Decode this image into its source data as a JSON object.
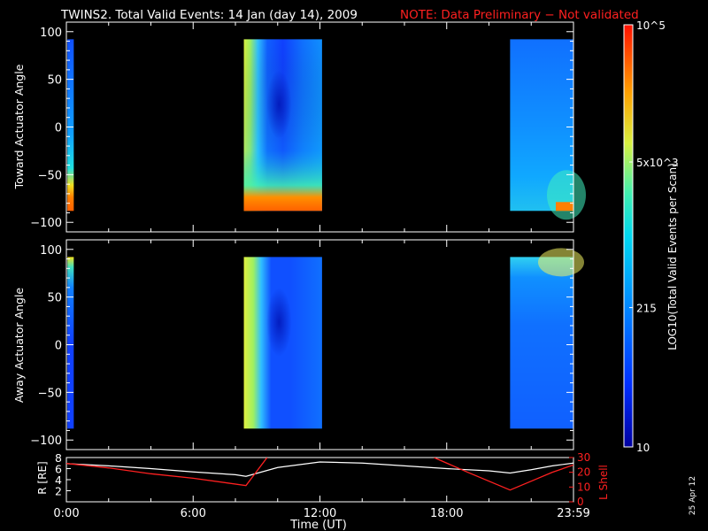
{
  "header": {
    "title": "TWINS2. Total Valid Events: 14 Jan (day  14), 2009",
    "note": "NOTE: Data Preliminary − Not validated"
  },
  "footer": {
    "date_stamp": "25 Apr 12"
  },
  "colors": {
    "background": "#000000",
    "axes": "#ffffff",
    "note": "#ff2020",
    "l_shell_line": "#ff2020",
    "r_line": "#ffffff"
  },
  "chart_data": [
    {
      "type": "heatmap",
      "name": "toward-panel",
      "ylabel": "Toward Actuator Angle",
      "ylim": [
        -110,
        110
      ],
      "yticks": [
        100,
        50,
        0,
        -50,
        -100
      ],
      "xlim": [
        0,
        24
      ],
      "data_blocks": [
        {
          "x_start": 0.05,
          "x_end": 0.35,
          "y_start": -88,
          "y_end": 92
        },
        {
          "x_start": 8.4,
          "x_end": 12.1,
          "y_start": -88,
          "y_end": 92
        },
        {
          "x_start": 21.0,
          "x_end": 24.0,
          "y_start": -88,
          "y_end": 92
        }
      ]
    },
    {
      "type": "heatmap",
      "name": "away-panel",
      "ylabel": "Away Actuator Angle",
      "ylim": [
        -110,
        110
      ],
      "yticks": [
        100,
        50,
        0,
        -50,
        -100
      ],
      "xlim": [
        0,
        24
      ],
      "data_blocks": [
        {
          "x_start": 0.05,
          "x_end": 0.35,
          "y_start": -88,
          "y_end": 92
        },
        {
          "x_start": 8.4,
          "x_end": 12.1,
          "y_start": -88,
          "y_end": 92
        },
        {
          "x_start": 21.0,
          "x_end": 24.0,
          "y_start": -88,
          "y_end": 92
        }
      ]
    },
    {
      "type": "line",
      "name": "orbit-panel",
      "ylabel_left": "R [RE]",
      "ylabel_right": "L Shell",
      "xlabel": "Time (UT)",
      "xlim": [
        0,
        24
      ],
      "xticks": [
        0,
        6,
        12,
        18,
        24
      ],
      "xtick_labels": [
        "0:00",
        "6:00",
        "12:00",
        "18:00",
        "23:59"
      ],
      "left_ylim": [
        0,
        8
      ],
      "left_yticks": [
        2,
        4,
        6,
        8
      ],
      "right_ylim": [
        0,
        30
      ],
      "right_yticks": [
        0,
        10,
        20,
        30
      ],
      "series": [
        {
          "name": "R",
          "axis": "left",
          "x": [
            0,
            2,
            4,
            6,
            8,
            8.5,
            10,
            12,
            14,
            16,
            18,
            20,
            21,
            22,
            23,
            24
          ],
          "y": [
            6.9,
            6.5,
            6.0,
            5.4,
            4.9,
            4.6,
            6.2,
            7.2,
            7.0,
            6.5,
            6.0,
            5.6,
            5.2,
            5.8,
            6.5,
            7.0
          ]
        },
        {
          "name": "L Shell",
          "axis": "right",
          "segments": [
            {
              "x": [
                0,
                2,
                4,
                6,
                8.5,
                9.5
              ],
              "y": [
                26,
                23,
                19,
                16,
                11,
                30
              ]
            },
            {
              "x": [
                17.4,
                19,
                21,
                22,
                23,
                24
              ],
              "y": [
                30,
                20,
                8,
                14,
                20,
                25
              ]
            }
          ]
        }
      ]
    },
    {
      "type": "colorbar",
      "name": "colorbar",
      "label": "LOG10(Total Valid Events per Scan)",
      "ticks": [
        {
          "value": 10,
          "label": "10",
          "frac": 0.0
        },
        {
          "value": 215,
          "label": "215",
          "frac": 0.33
        },
        {
          "value": 5000,
          "label": "5x10^3",
          "frac": 0.675
        },
        {
          "value": 100000,
          "label": "10^5",
          "frac": 1.0
        }
      ]
    }
  ]
}
